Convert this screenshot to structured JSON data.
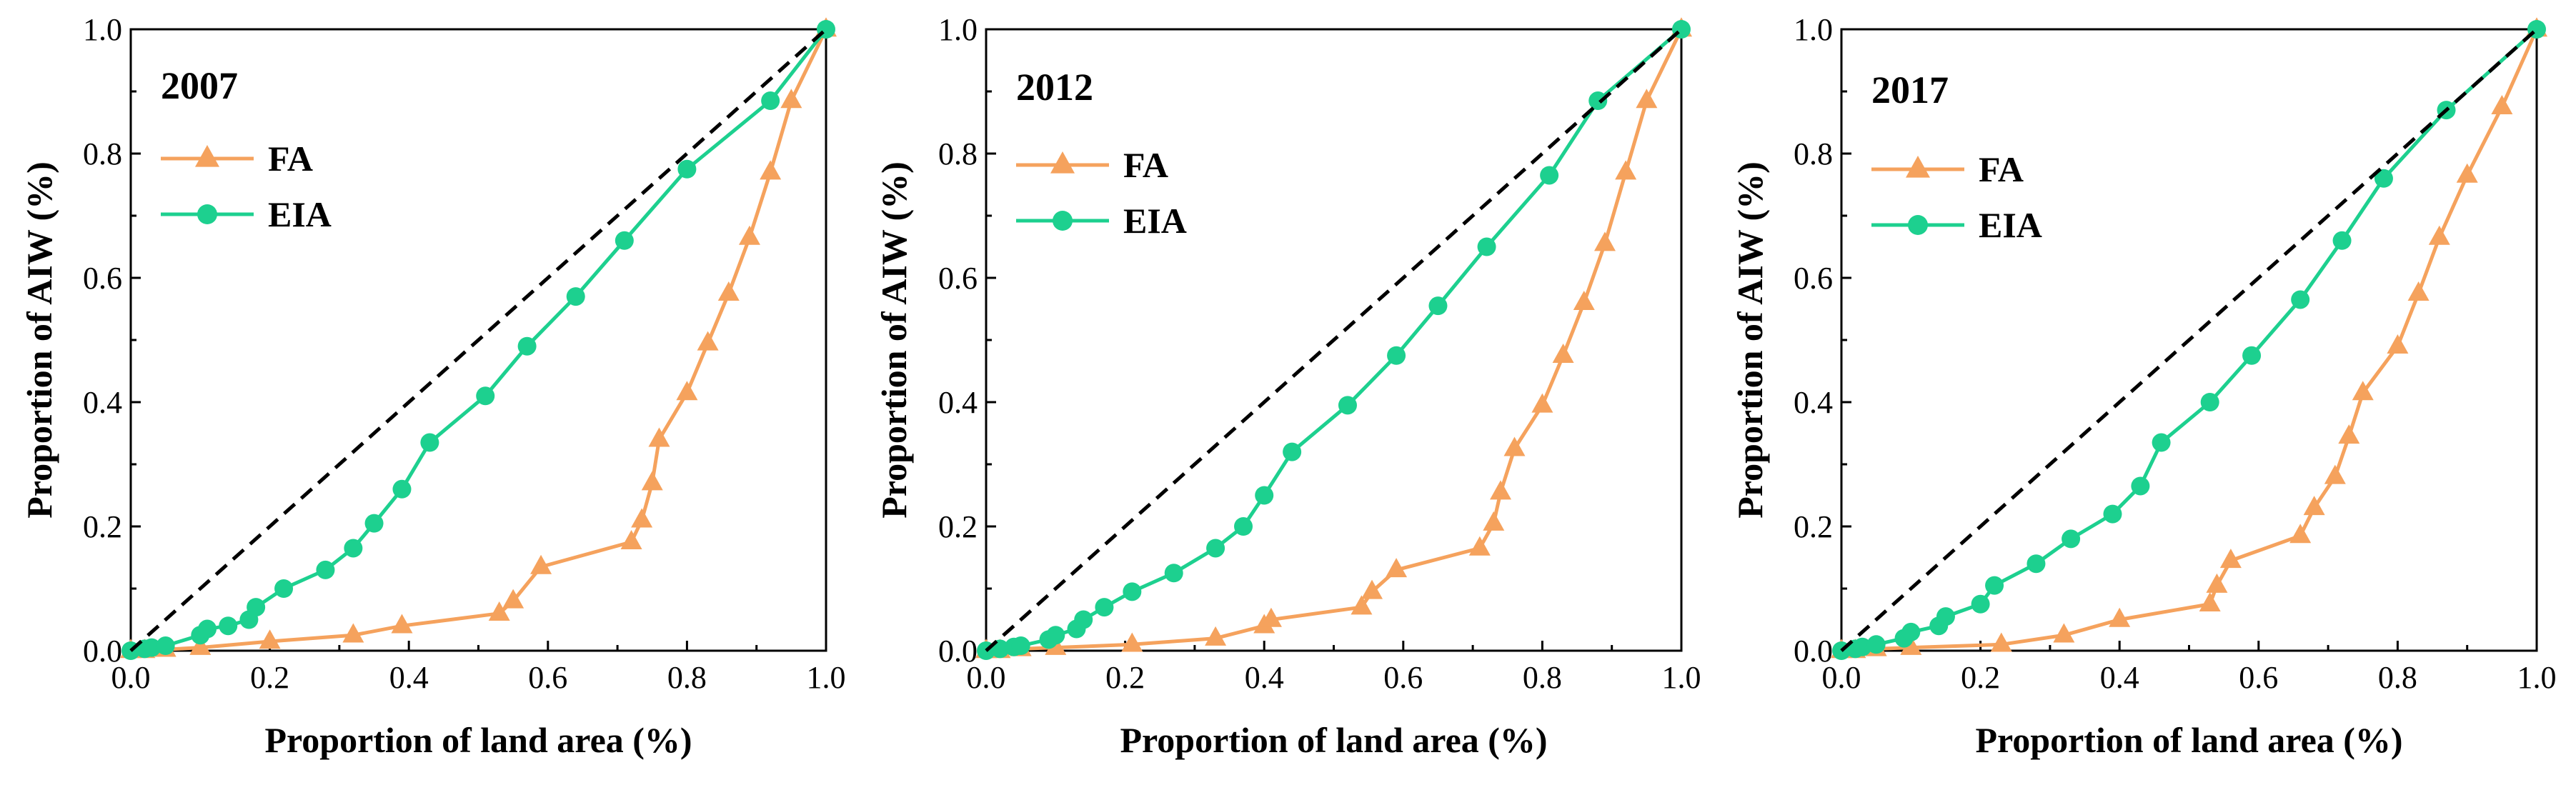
{
  "colors": {
    "fa": "#F5A25D",
    "eia": "#1DD08F",
    "reference": "#000000"
  },
  "chart_data": [
    {
      "type": "line",
      "year_label": "2007",
      "xlabel": "Proportion of land area (%)",
      "ylabel": "Proportion of AIW (%)",
      "xlim": [
        0,
        1
      ],
      "ylim": [
        0,
        1
      ],
      "xticks": [
        "0.0",
        "0.2",
        "0.4",
        "0.6",
        "0.8",
        "1.0"
      ],
      "yticks": [
        "0.0",
        "0.2",
        "0.4",
        "0.6",
        "0.8",
        "1.0"
      ],
      "legend": [
        "FA",
        "EIA"
      ],
      "series": [
        {
          "name": "FA",
          "x": [
            0,
            0.02,
            0.05,
            0.1,
            0.2,
            0.32,
            0.39,
            0.53,
            0.55,
            0.59,
            0.72,
            0.735,
            0.75,
            0.76,
            0.8,
            0.83,
            0.86,
            0.89,
            0.92,
            0.95,
            1.0
          ],
          "y": [
            0,
            0,
            0.002,
            0.005,
            0.015,
            0.025,
            0.04,
            0.06,
            0.08,
            0.135,
            0.175,
            0.21,
            0.27,
            0.34,
            0.415,
            0.495,
            0.575,
            0.665,
            0.77,
            0.885,
            1.0
          ]
        },
        {
          "name": "EIA",
          "x": [
            0,
            0.02,
            0.03,
            0.05,
            0.1,
            0.11,
            0.14,
            0.17,
            0.18,
            0.22,
            0.28,
            0.32,
            0.35,
            0.39,
            0.43,
            0.51,
            0.57,
            0.64,
            0.71,
            0.8,
            0.92,
            1.0
          ],
          "y": [
            0,
            0.003,
            0.005,
            0.008,
            0.025,
            0.035,
            0.04,
            0.05,
            0.07,
            0.1,
            0.13,
            0.165,
            0.205,
            0.26,
            0.335,
            0.41,
            0.49,
            0.57,
            0.66,
            0.775,
            0.885,
            1.0
          ]
        },
        {
          "name": "Reference",
          "x": [
            0,
            1
          ],
          "y": [
            0,
            1
          ]
        }
      ]
    },
    {
      "type": "line",
      "year_label": "2012",
      "xlabel": "Proportion of land area (%)",
      "ylabel": "Proportion of AIW (%)",
      "xlim": [
        0,
        1
      ],
      "ylim": [
        0,
        1
      ],
      "xticks": [
        "0.0",
        "0.2",
        "0.4",
        "0.6",
        "0.8",
        "1.0"
      ],
      "yticks": [
        "0.0",
        "0.2",
        "0.4",
        "0.6",
        "0.8",
        "1.0"
      ],
      "legend": [
        "FA",
        "EIA"
      ],
      "series": [
        {
          "name": "FA",
          "x": [
            0,
            0.02,
            0.05,
            0.1,
            0.21,
            0.33,
            0.4,
            0.41,
            0.54,
            0.555,
            0.59,
            0.71,
            0.73,
            0.74,
            0.76,
            0.8,
            0.83,
            0.86,
            0.89,
            0.92,
            0.95,
            1.0
          ],
          "y": [
            0,
            0,
            0.003,
            0.005,
            0.01,
            0.02,
            0.04,
            0.05,
            0.07,
            0.095,
            0.13,
            0.165,
            0.205,
            0.255,
            0.325,
            0.395,
            0.475,
            0.56,
            0.655,
            0.77,
            0.885,
            1.0
          ]
        },
        {
          "name": "EIA",
          "x": [
            0,
            0.02,
            0.04,
            0.05,
            0.09,
            0.1,
            0.13,
            0.14,
            0.17,
            0.21,
            0.27,
            0.33,
            0.37,
            0.4,
            0.44,
            0.52,
            0.59,
            0.65,
            0.72,
            0.81,
            0.88,
            1.0
          ],
          "y": [
            0,
            0.003,
            0.006,
            0.008,
            0.018,
            0.025,
            0.035,
            0.05,
            0.07,
            0.095,
            0.125,
            0.165,
            0.2,
            0.25,
            0.32,
            0.395,
            0.475,
            0.555,
            0.65,
            0.765,
            0.885,
            1.0
          ]
        },
        {
          "name": "Reference",
          "x": [
            0,
            1
          ],
          "y": [
            0,
            1
          ]
        }
      ]
    },
    {
      "type": "line",
      "year_label": "2017",
      "xlabel": "Proportion of land area (%)",
      "ylabel": "Proportion of AIW (%)",
      "xlim": [
        0,
        1
      ],
      "ylim": [
        0,
        1
      ],
      "xticks": [
        "0.0",
        "0.2",
        "0.4",
        "0.6",
        "0.8",
        "1.0"
      ],
      "yticks": [
        "0.0",
        "0.2",
        "0.4",
        "0.6",
        "0.8",
        "1.0"
      ],
      "legend": [
        "FA",
        "EIA"
      ],
      "series": [
        {
          "name": "FA",
          "x": [
            0,
            0.02,
            0.05,
            0.1,
            0.23,
            0.32,
            0.4,
            0.53,
            0.54,
            0.56,
            0.66,
            0.68,
            0.71,
            0.73,
            0.75,
            0.8,
            0.83,
            0.86,
            0.9,
            0.95,
            1.0
          ],
          "y": [
            0,
            0,
            0.003,
            0.005,
            0.01,
            0.025,
            0.05,
            0.075,
            0.105,
            0.145,
            0.185,
            0.23,
            0.28,
            0.345,
            0.415,
            0.49,
            0.575,
            0.665,
            0.765,
            0.875,
            1.0
          ]
        },
        {
          "name": "EIA",
          "x": [
            0,
            0.02,
            0.03,
            0.05,
            0.09,
            0.1,
            0.14,
            0.15,
            0.2,
            0.22,
            0.28,
            0.33,
            0.39,
            0.43,
            0.46,
            0.53,
            0.59,
            0.66,
            0.72,
            0.78,
            0.87,
            1.0
          ],
          "y": [
            0,
            0.003,
            0.006,
            0.01,
            0.02,
            0.03,
            0.04,
            0.055,
            0.075,
            0.105,
            0.14,
            0.18,
            0.22,
            0.265,
            0.335,
            0.4,
            0.475,
            0.565,
            0.66,
            0.76,
            0.87,
            1.0
          ]
        },
        {
          "name": "Reference",
          "x": [
            0,
            1
          ],
          "y": [
            0,
            1
          ]
        }
      ]
    }
  ]
}
